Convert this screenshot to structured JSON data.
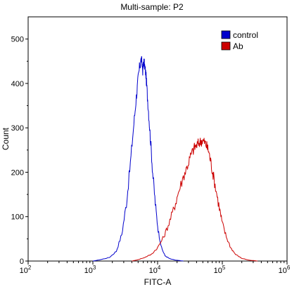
{
  "chart_data": {
    "type": "line",
    "title": "Multi-sample: P2",
    "xlabel": "FITC-A",
    "ylabel": "Count",
    "x_scale": "log",
    "xlim": [
      100,
      1000000
    ],
    "ylim": [
      0,
      550
    ],
    "x_ticks": [
      100,
      1000,
      10000,
      100000,
      1000000
    ],
    "x_tick_labels": [
      {
        "base": "10",
        "exp": "2"
      },
      {
        "base": "10",
        "exp": "3"
      },
      {
        "base": "10",
        "exp": "4"
      },
      {
        "base": "10",
        "exp": "5"
      },
      {
        "base": "10",
        "exp": "6"
      }
    ],
    "y_ticks": [
      0,
      100,
      200,
      300,
      400,
      500
    ],
    "grid": false,
    "legend_position": "top-right",
    "series": [
      {
        "name": "control",
        "color": "#0000cc",
        "x": [
          1000,
          1300,
          1800,
          2300,
          2800,
          3300,
          3800,
          4300,
          4700,
          5000,
          5300,
          5600,
          5900,
          6100,
          6300,
          6600,
          6900,
          7300,
          7800,
          8400,
          9200,
          10200,
          11500,
          13000,
          15500,
          19000,
          25000
        ],
        "y": [
          0,
          3,
          8,
          22,
          60,
          130,
          220,
          310,
          370,
          410,
          440,
          455,
          430,
          450,
          440,
          420,
          380,
          330,
          270,
          200,
          130,
          70,
          30,
          12,
          5,
          2,
          0
        ]
      },
      {
        "name": "Ab",
        "color": "#cc0000",
        "x": [
          4000,
          5000,
          6300,
          8000,
          10000,
          12500,
          15000,
          18000,
          21000,
          25000,
          29000,
          33000,
          37000,
          41000,
          45000,
          49000,
          53000,
          57000,
          61000,
          66000,
          72000,
          80000,
          90000,
          100000,
          115000,
          135000,
          160000,
          200000,
          260000,
          350000
        ],
        "y": [
          0,
          3,
          8,
          15,
          30,
          55,
          85,
          120,
          155,
          190,
          215,
          240,
          255,
          262,
          268,
          272,
          268,
          260,
          250,
          225,
          195,
          160,
          120,
          85,
          55,
          30,
          15,
          6,
          2,
          0
        ]
      }
    ]
  }
}
